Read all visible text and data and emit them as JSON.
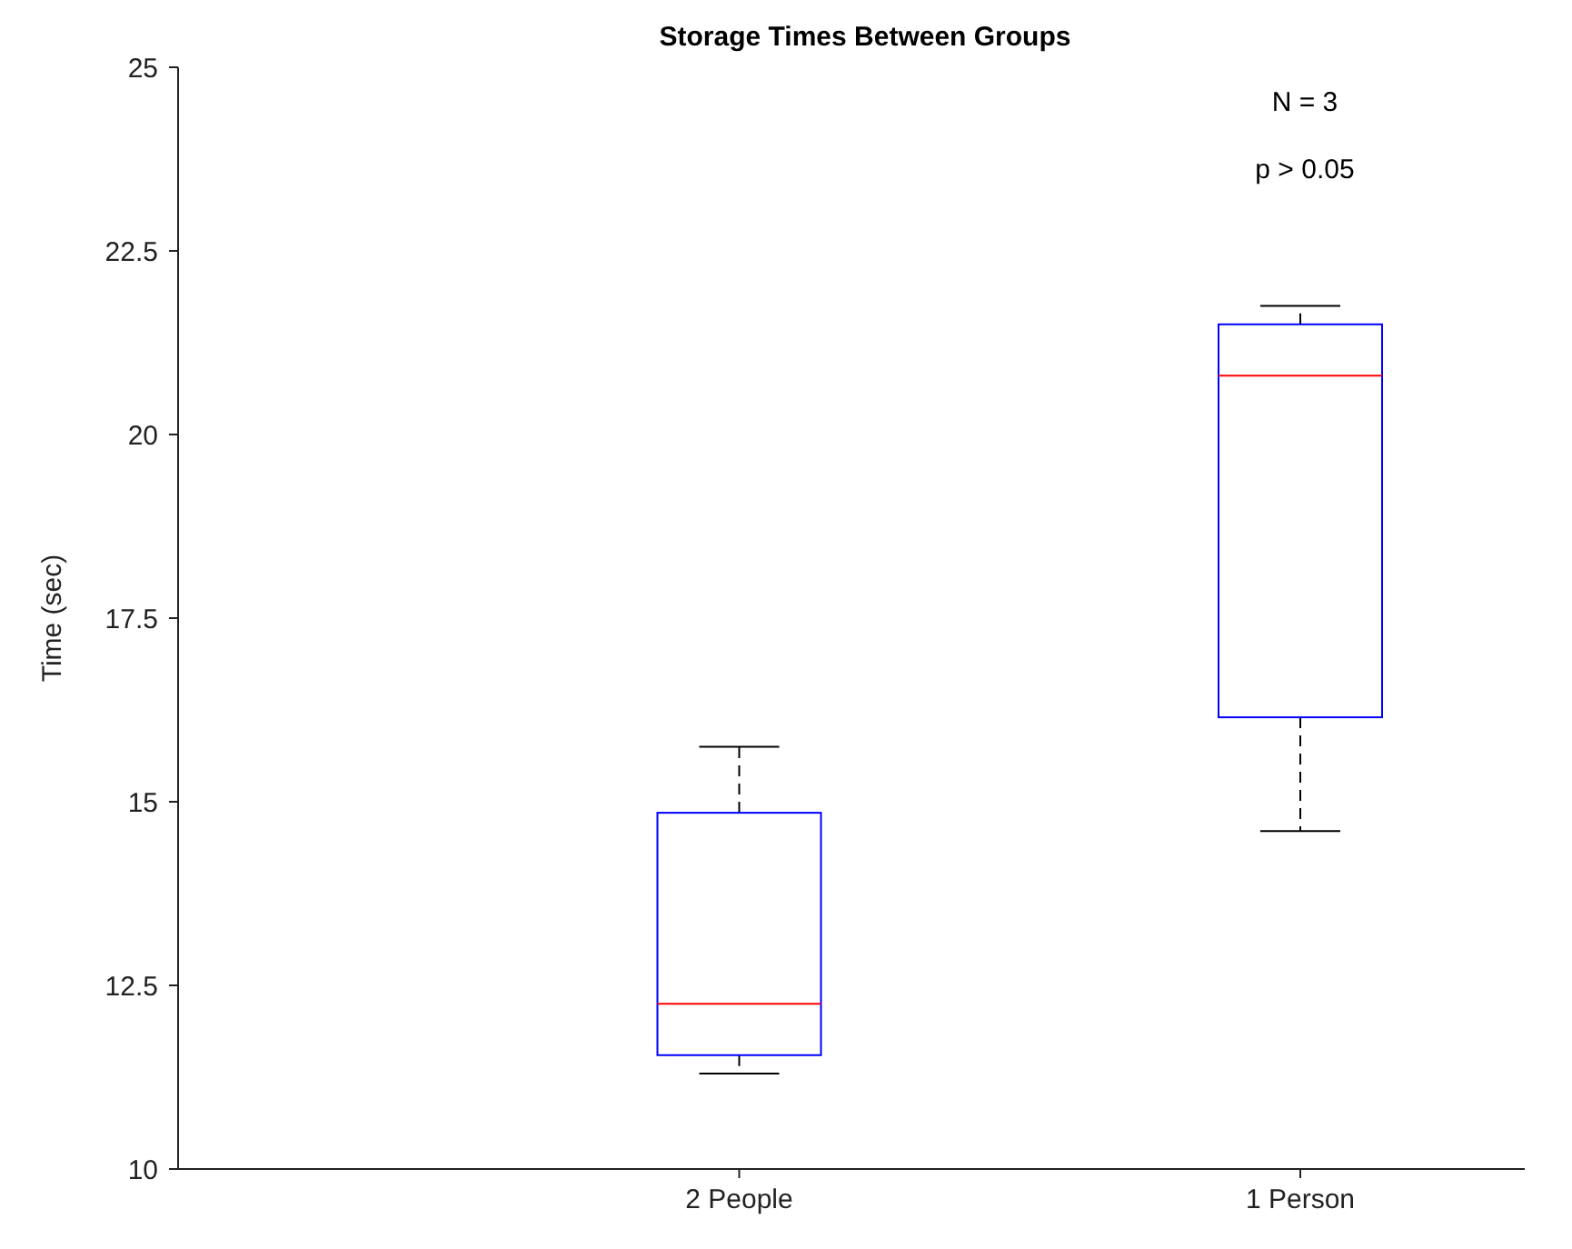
{
  "chart_data": {
    "type": "box",
    "title": "Storage Times Between Groups",
    "ylabel": "Time (sec)",
    "categories": [
      "2 People",
      "1 Person"
    ],
    "boxes": [
      {
        "low": 11.3,
        "q1": 11.55,
        "median": 12.25,
        "q3": 14.85,
        "high": 15.75
      },
      {
        "low": 14.6,
        "q1": 16.15,
        "median": 20.8,
        "q3": 21.5,
        "high": 21.75
      }
    ],
    "color": "#0000ff",
    "ylim": [
      10,
      25
    ],
    "yticks": [
      10,
      12.5,
      15,
      17.5,
      20,
      22.5,
      25
    ],
    "annotations": [
      "N = 3",
      "p > 0.05"
    ]
  }
}
